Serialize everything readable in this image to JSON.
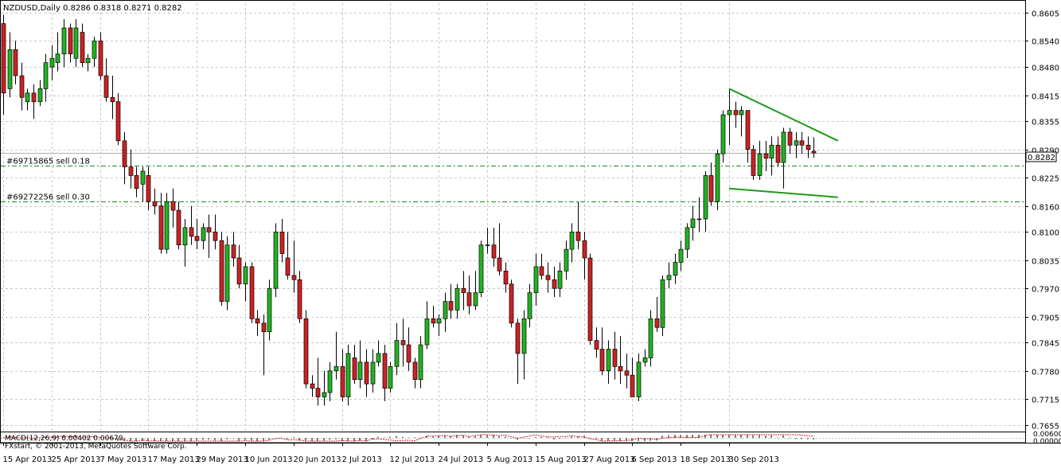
{
  "header": {
    "symbol_text": "NZDUSD,Daily  0.8286 0.8318 0.8271 0.8282"
  },
  "indicator": {
    "label": "MACD(12,26,9) 0.00402 0.00679",
    "value_left": "0.00600",
    "value_right": "0.00000"
  },
  "copyright": "FXstart, © 2001-2013, MetaQuotes Software Corp.",
  "orders": [
    {
      "label": "#69715865 sell 0.18",
      "price": 0.8253
    },
    {
      "label": "#69272256 sell 0.30",
      "price": 0.817
    }
  ],
  "current_price_label": "0.8282",
  "colors": {
    "bull": "#22b322",
    "bear": "#cc2222",
    "wick": "#000000",
    "grid": "#c8c8c8",
    "order_line": "#1a8a1a",
    "trend_line": "#1a9a1a",
    "macd_signal": "#cc2222"
  },
  "chart_data": {
    "type": "candlestick",
    "title": "NZDUSD,Daily",
    "ylim": [
      0.7642,
      0.8627
    ],
    "y_ticks": [
      "0.8605",
      "0.8540",
      "0.8480",
      "0.8415",
      "0.8355",
      "0.8290",
      "0.8225",
      "0.8160",
      "0.8100",
      "0.8035",
      "0.7970",
      "0.7905",
      "0.7845",
      "0.7780",
      "0.7715",
      "0.7655"
    ],
    "x_ticks": [
      "15 Apr 2013",
      "25 Apr 2013",
      "7 May 2013",
      "17 May 2013",
      "29 May 2013",
      "10 Jun 2013",
      "20 Jun 2013",
      "2 Jul 2013",
      "12 Jul 2013",
      "24 Jul 2013",
      "5 Aug 2013",
      "15 Aug 2013",
      "27 Aug 2013",
      "6 Sep 2013",
      "18 Sep 2013",
      "30 Sep 2013"
    ],
    "grid": true,
    "candles": [
      [
        0.858,
        0.86,
        0.837,
        0.842
      ],
      [
        0.843,
        0.856,
        0.841,
        0.852
      ],
      [
        0.852,
        0.854,
        0.844,
        0.846
      ],
      [
        0.846,
        0.849,
        0.838,
        0.841
      ],
      [
        0.84,
        0.843,
        0.838,
        0.842
      ],
      [
        0.842,
        0.844,
        0.836,
        0.84
      ],
      [
        0.84,
        0.845,
        0.839,
        0.843
      ],
      [
        0.843,
        0.851,
        0.84,
        0.849
      ],
      [
        0.848,
        0.853,
        0.845,
        0.85
      ],
      [
        0.849,
        0.856,
        0.847,
        0.851
      ],
      [
        0.851,
        0.859,
        0.848,
        0.857
      ],
      [
        0.857,
        0.858,
        0.849,
        0.851
      ],
      [
        0.85,
        0.859,
        0.848,
        0.857
      ],
      [
        0.856,
        0.858,
        0.848,
        0.849
      ],
      [
        0.849,
        0.851,
        0.847,
        0.85
      ],
      [
        0.85,
        0.855,
        0.848,
        0.854
      ],
      [
        0.854,
        0.856,
        0.845,
        0.846
      ],
      [
        0.846,
        0.85,
        0.84,
        0.841
      ],
      [
        0.841,
        0.846,
        0.836,
        0.84
      ],
      [
        0.84,
        0.842,
        0.83,
        0.831
      ],
      [
        0.831,
        0.833,
        0.821,
        0.825
      ],
      [
        0.825,
        0.829,
        0.82,
        0.823
      ],
      [
        0.823,
        0.825,
        0.818,
        0.82
      ],
      [
        0.821,
        0.825,
        0.817,
        0.824
      ],
      [
        0.823,
        0.825,
        0.815,
        0.817
      ],
      [
        0.817,
        0.82,
        0.814,
        0.816
      ],
      [
        0.816,
        0.819,
        0.805,
        0.806
      ],
      [
        0.806,
        0.819,
        0.805,
        0.817
      ],
      [
        0.817,
        0.82,
        0.811,
        0.815
      ],
      [
        0.815,
        0.817,
        0.806,
        0.807
      ],
      [
        0.807,
        0.813,
        0.802,
        0.811
      ],
      [
        0.811,
        0.816,
        0.807,
        0.809
      ],
      [
        0.809,
        0.813,
        0.806,
        0.808
      ],
      [
        0.808,
        0.812,
        0.806,
        0.811
      ],
      [
        0.811,
        0.814,
        0.804,
        0.81
      ],
      [
        0.81,
        0.814,
        0.806,
        0.808
      ],
      [
        0.808,
        0.81,
        0.793,
        0.794
      ],
      [
        0.794,
        0.809,
        0.792,
        0.807
      ],
      [
        0.807,
        0.81,
        0.802,
        0.804
      ],
      [
        0.804,
        0.807,
        0.797,
        0.798
      ],
      [
        0.798,
        0.803,
        0.794,
        0.802
      ],
      [
        0.802,
        0.803,
        0.789,
        0.79
      ],
      [
        0.79,
        0.792,
        0.786,
        0.789
      ],
      [
        0.789,
        0.791,
        0.777,
        0.787
      ],
      [
        0.787,
        0.799,
        0.785,
        0.797
      ],
      [
        0.797,
        0.812,
        0.795,
        0.81
      ],
      [
        0.81,
        0.813,
        0.803,
        0.805
      ],
      [
        0.804,
        0.81,
        0.799,
        0.8
      ],
      [
        0.8,
        0.808,
        0.796,
        0.799
      ],
      [
        0.799,
        0.801,
        0.789,
        0.79
      ],
      [
        0.79,
        0.792,
        0.774,
        0.775
      ],
      [
        0.775,
        0.777,
        0.772,
        0.774
      ],
      [
        0.774,
        0.781,
        0.77,
        0.772
      ],
      [
        0.772,
        0.778,
        0.77,
        0.773
      ],
      [
        0.773,
        0.78,
        0.771,
        0.778
      ],
      [
        0.778,
        0.787,
        0.776,
        0.779
      ],
      [
        0.779,
        0.783,
        0.771,
        0.772
      ],
      [
        0.772,
        0.784,
        0.77,
        0.782
      ],
      [
        0.781,
        0.784,
        0.775,
        0.776
      ],
      [
        0.776,
        0.785,
        0.774,
        0.78
      ],
      [
        0.78,
        0.783,
        0.772,
        0.775
      ],
      [
        0.775,
        0.783,
        0.773,
        0.78
      ],
      [
        0.78,
        0.785,
        0.779,
        0.782
      ],
      [
        0.782,
        0.784,
        0.771,
        0.774
      ],
      [
        0.774,
        0.78,
        0.773,
        0.779
      ],
      [
        0.779,
        0.789,
        0.777,
        0.785
      ],
      [
        0.785,
        0.79,
        0.779,
        0.784
      ],
      [
        0.784,
        0.788,
        0.778,
        0.78
      ],
      [
        0.78,
        0.781,
        0.774,
        0.776
      ],
      [
        0.776,
        0.786,
        0.774,
        0.784
      ],
      [
        0.784,
        0.794,
        0.783,
        0.79
      ],
      [
        0.79,
        0.793,
        0.788,
        0.789
      ],
      [
        0.789,
        0.791,
        0.786,
        0.79
      ],
      [
        0.79,
        0.796,
        0.787,
        0.794
      ],
      [
        0.794,
        0.798,
        0.79,
        0.792
      ],
      [
        0.792,
        0.798,
        0.79,
        0.797
      ],
      [
        0.797,
        0.801,
        0.792,
        0.796
      ],
      [
        0.796,
        0.8,
        0.791,
        0.793
      ],
      [
        0.793,
        0.801,
        0.792,
        0.796
      ],
      [
        0.796,
        0.808,
        0.795,
        0.807
      ],
      [
        0.807,
        0.811,
        0.805,
        0.807
      ],
      [
        0.807,
        0.811,
        0.802,
        0.804
      ],
      [
        0.804,
        0.812,
        0.8,
        0.801
      ],
      [
        0.801,
        0.803,
        0.796,
        0.798
      ],
      [
        0.798,
        0.799,
        0.788,
        0.789
      ],
      [
        0.789,
        0.79,
        0.775,
        0.782
      ],
      [
        0.782,
        0.792,
        0.776,
        0.79
      ],
      [
        0.79,
        0.798,
        0.788,
        0.796
      ],
      [
        0.796,
        0.805,
        0.793,
        0.802
      ],
      [
        0.802,
        0.805,
        0.799,
        0.8
      ],
      [
        0.8,
        0.803,
        0.796,
        0.799
      ],
      [
        0.799,
        0.802,
        0.795,
        0.797
      ],
      [
        0.797,
        0.803,
        0.795,
        0.801
      ],
      [
        0.801,
        0.808,
        0.799,
        0.806
      ],
      [
        0.806,
        0.812,
        0.803,
        0.81
      ],
      [
        0.81,
        0.817,
        0.806,
        0.808
      ],
      [
        0.808,
        0.81,
        0.799,
        0.804
      ],
      [
        0.804,
        0.805,
        0.784,
        0.785
      ],
      [
        0.785,
        0.788,
        0.781,
        0.783
      ],
      [
        0.783,
        0.788,
        0.777,
        0.778
      ],
      [
        0.778,
        0.785,
        0.775,
        0.783
      ],
      [
        0.783,
        0.787,
        0.776,
        0.779
      ],
      [
        0.779,
        0.786,
        0.775,
        0.778
      ],
      [
        0.778,
        0.782,
        0.774,
        0.777
      ],
      [
        0.777,
        0.781,
        0.772,
        0.772
      ],
      [
        0.772,
        0.782,
        0.771,
        0.78
      ],
      [
        0.78,
        0.783,
        0.779,
        0.781
      ],
      [
        0.781,
        0.792,
        0.779,
        0.79
      ],
      [
        0.79,
        0.795,
        0.787,
        0.788
      ],
      [
        0.788,
        0.8,
        0.786,
        0.799
      ],
      [
        0.799,
        0.803,
        0.797,
        0.8
      ],
      [
        0.8,
        0.805,
        0.798,
        0.803
      ],
      [
        0.803,
        0.808,
        0.801,
        0.806
      ],
      [
        0.806,
        0.812,
        0.804,
        0.811
      ],
      [
        0.811,
        0.816,
        0.808,
        0.813
      ],
      [
        0.813,
        0.818,
        0.81,
        0.813
      ],
      [
        0.813,
        0.824,
        0.81,
        0.823
      ],
      [
        0.823,
        0.826,
        0.816,
        0.817
      ],
      [
        0.817,
        0.829,
        0.815,
        0.828
      ],
      [
        0.828,
        0.838,
        0.826,
        0.837
      ],
      [
        0.837,
        0.843,
        0.83,
        0.838
      ],
      [
        0.838,
        0.84,
        0.834,
        0.837
      ],
      [
        0.837,
        0.839,
        0.832,
        0.838
      ],
      [
        0.838,
        0.838,
        0.826,
        0.829
      ],
      [
        0.829,
        0.83,
        0.822,
        0.823
      ],
      [
        0.823,
        0.831,
        0.822,
        0.828
      ],
      [
        0.828,
        0.831,
        0.824,
        0.827
      ],
      [
        0.827,
        0.832,
        0.823,
        0.83
      ],
      [
        0.83,
        0.832,
        0.825,
        0.826
      ],
      [
        0.826,
        0.834,
        0.82,
        0.833
      ],
      [
        0.833,
        0.834,
        0.828,
        0.83
      ],
      [
        0.83,
        0.833,
        0.827,
        0.831
      ],
      [
        0.831,
        0.833,
        0.828,
        0.83
      ],
      [
        0.83,
        0.832,
        0.827,
        0.829
      ],
      [
        0.8286,
        0.8318,
        0.8271,
        0.8282
      ]
    ],
    "trend_lines": [
      {
        "from": [
          120,
          0.843
        ],
        "to": [
          138,
          0.831
        ]
      },
      {
        "from": [
          120,
          0.82
        ],
        "to": [
          138,
          0.818
        ]
      }
    ],
    "macd": {
      "fast": 12,
      "slow": 26,
      "signal": 9,
      "main": 0.00402,
      "signal_value": 0.00679
    }
  }
}
